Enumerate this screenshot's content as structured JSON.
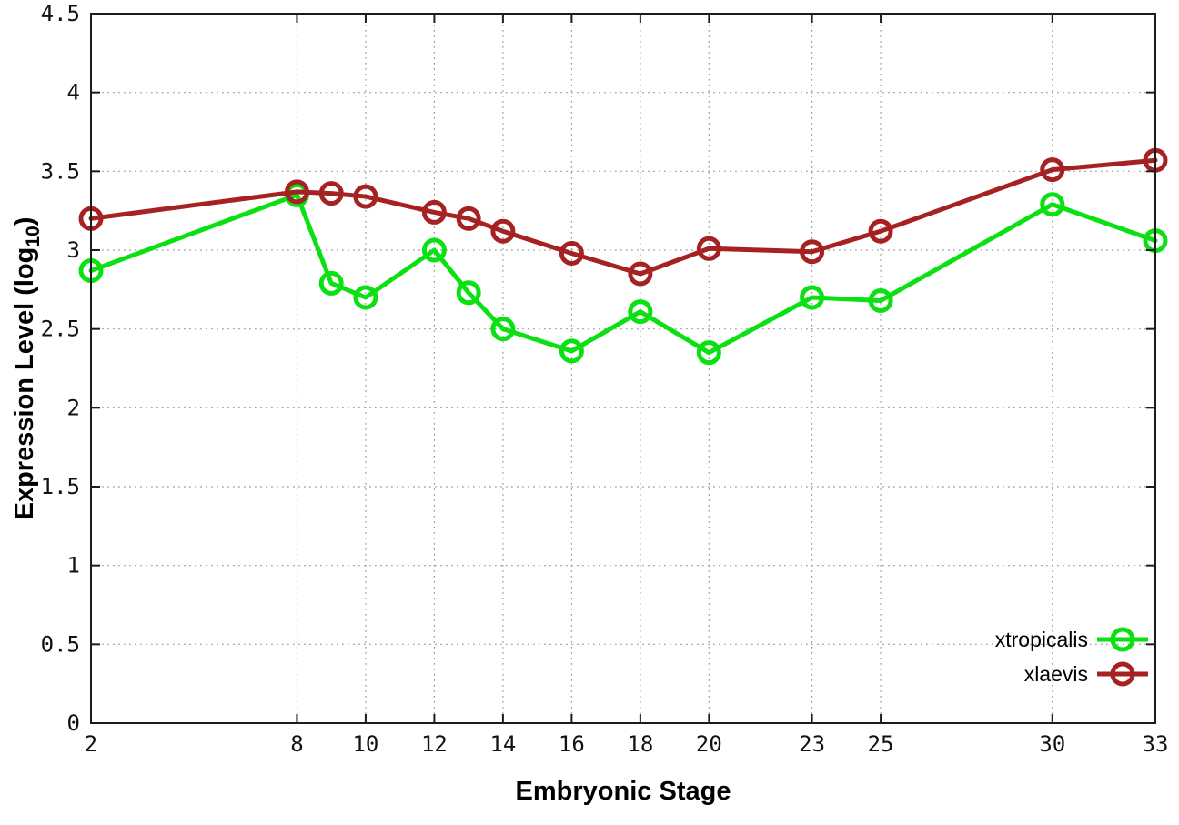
{
  "page": {
    "background": "#ffffff",
    "border_color": "#1c1c1c",
    "grid_color": "#9a9aa6"
  },
  "chart_data": {
    "type": "line",
    "title": "",
    "xlabel": "Embryonic Stage",
    "ylabel": "Expression Level (log10)",
    "ylabel_main": "Expression Level (log",
    "ylabel_sub": "10",
    "ylabel_end": ")",
    "xlim": [
      2,
      33
    ],
    "ylim": [
      0,
      4.5
    ],
    "x_ticks": [
      2,
      8,
      10,
      12,
      14,
      16,
      18,
      20,
      23,
      25,
      30,
      33
    ],
    "y_ticks": [
      0,
      0.5,
      1,
      1.5,
      2,
      2.5,
      3,
      3.5,
      4,
      4.5
    ],
    "grid": true,
    "grid_style": "dotted",
    "legend_position": "bottom-right",
    "marker": "open-circle",
    "x": [
      2,
      8,
      9,
      10,
      12,
      13,
      14,
      16,
      18,
      20,
      23,
      25,
      30,
      33
    ],
    "series": [
      {
        "name": "xtropicalis",
        "color": "#0be112",
        "values": [
          2.87,
          3.35,
          2.79,
          2.7,
          3.0,
          2.73,
          2.5,
          2.36,
          2.61,
          2.35,
          2.7,
          2.68,
          3.29,
          3.06
        ]
      },
      {
        "name": "xlaevis",
        "color": "#a62222",
        "values": [
          3.2,
          3.37,
          3.36,
          3.34,
          3.24,
          3.2,
          3.12,
          2.98,
          2.85,
          3.01,
          2.99,
          3.12,
          3.51,
          3.57
        ]
      }
    ]
  }
}
